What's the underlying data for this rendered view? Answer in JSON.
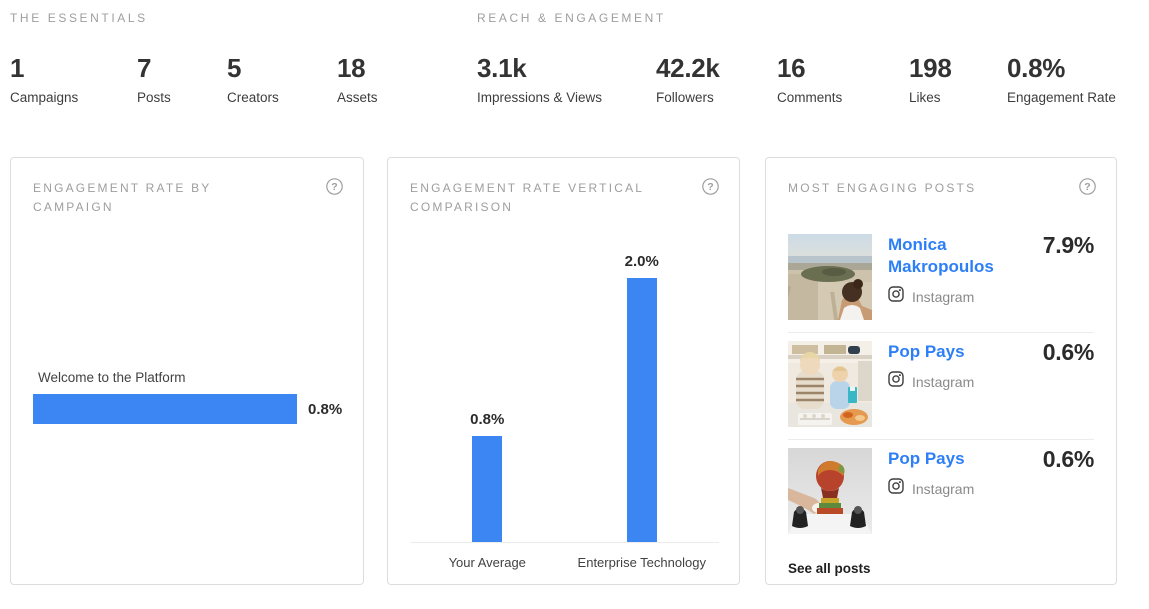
{
  "colors": {
    "accent_blue": "#3b86f2",
    "link_blue": "#2d7ff7",
    "heading_gray": "#9e9e9e",
    "text_dark": "#2d2d2d",
    "card_border": "#dddddd"
  },
  "essentials": {
    "heading": "THE ESSENTIALS",
    "stats": [
      {
        "value": "1",
        "label": "Campaigns"
      },
      {
        "value": "7",
        "label": "Posts"
      },
      {
        "value": "5",
        "label": "Creators"
      },
      {
        "value": "18",
        "label": "Assets"
      }
    ]
  },
  "reach": {
    "heading": "REACH & ENGAGEMENT",
    "stats": [
      {
        "value": "3.1k",
        "label": "Impressions & Views"
      },
      {
        "value": "42.2k",
        "label": "Followers"
      },
      {
        "value": "16",
        "label": "Comments"
      },
      {
        "value": "198",
        "label": "Likes"
      },
      {
        "value": "0.8%",
        "label": "Engagement Rate"
      }
    ]
  },
  "chart_data": [
    {
      "type": "bar",
      "orientation": "horizontal",
      "title": "ENGAGEMENT RATE BY CAMPAIGN",
      "categories": [
        "Welcome to the Platform"
      ],
      "values": [
        0.8
      ],
      "value_labels": [
        "0.8%"
      ],
      "unit": "%",
      "xlim": [
        0,
        0.8
      ],
      "grid": false,
      "legend": false,
      "bar_color": "#3b86f2"
    },
    {
      "type": "bar",
      "orientation": "vertical",
      "title": "ENGAGEMENT RATE VERTICAL COMPARISON",
      "categories": [
        "Your Average",
        "Enterprise Technology"
      ],
      "values": [
        0.8,
        2.0
      ],
      "value_labels": [
        "0.8%",
        "2.0%"
      ],
      "unit": "%",
      "ylim": [
        0,
        2.0
      ],
      "grid": false,
      "legend": false,
      "bar_color": "#3b86f2"
    }
  ],
  "cards": {
    "posts": {
      "title": "MOST ENGAGING POSTS",
      "help_icon": "help-circle-icon",
      "see_all_label": "See all posts",
      "items": [
        {
          "name": "Monica Makropoulos",
          "platform": "Instagram",
          "platform_icon": "instagram-icon",
          "engagement": "7.9%",
          "thumbnail_desc": "aerial cityscape photo with woman overlooking Athens"
        },
        {
          "name": "Pop Pays",
          "platform": "Instagram",
          "platform_icon": "instagram-icon",
          "engagement": "0.6%",
          "thumbnail_desc": "two children sitting on a kitchen counter"
        },
        {
          "name": "Pop Pays",
          "platform": "Instagram",
          "platform_icon": "instagram-icon",
          "engagement": "0.6%",
          "thumbnail_desc": "hands placing colorful painted bust sculpture on table"
        }
      ]
    }
  }
}
